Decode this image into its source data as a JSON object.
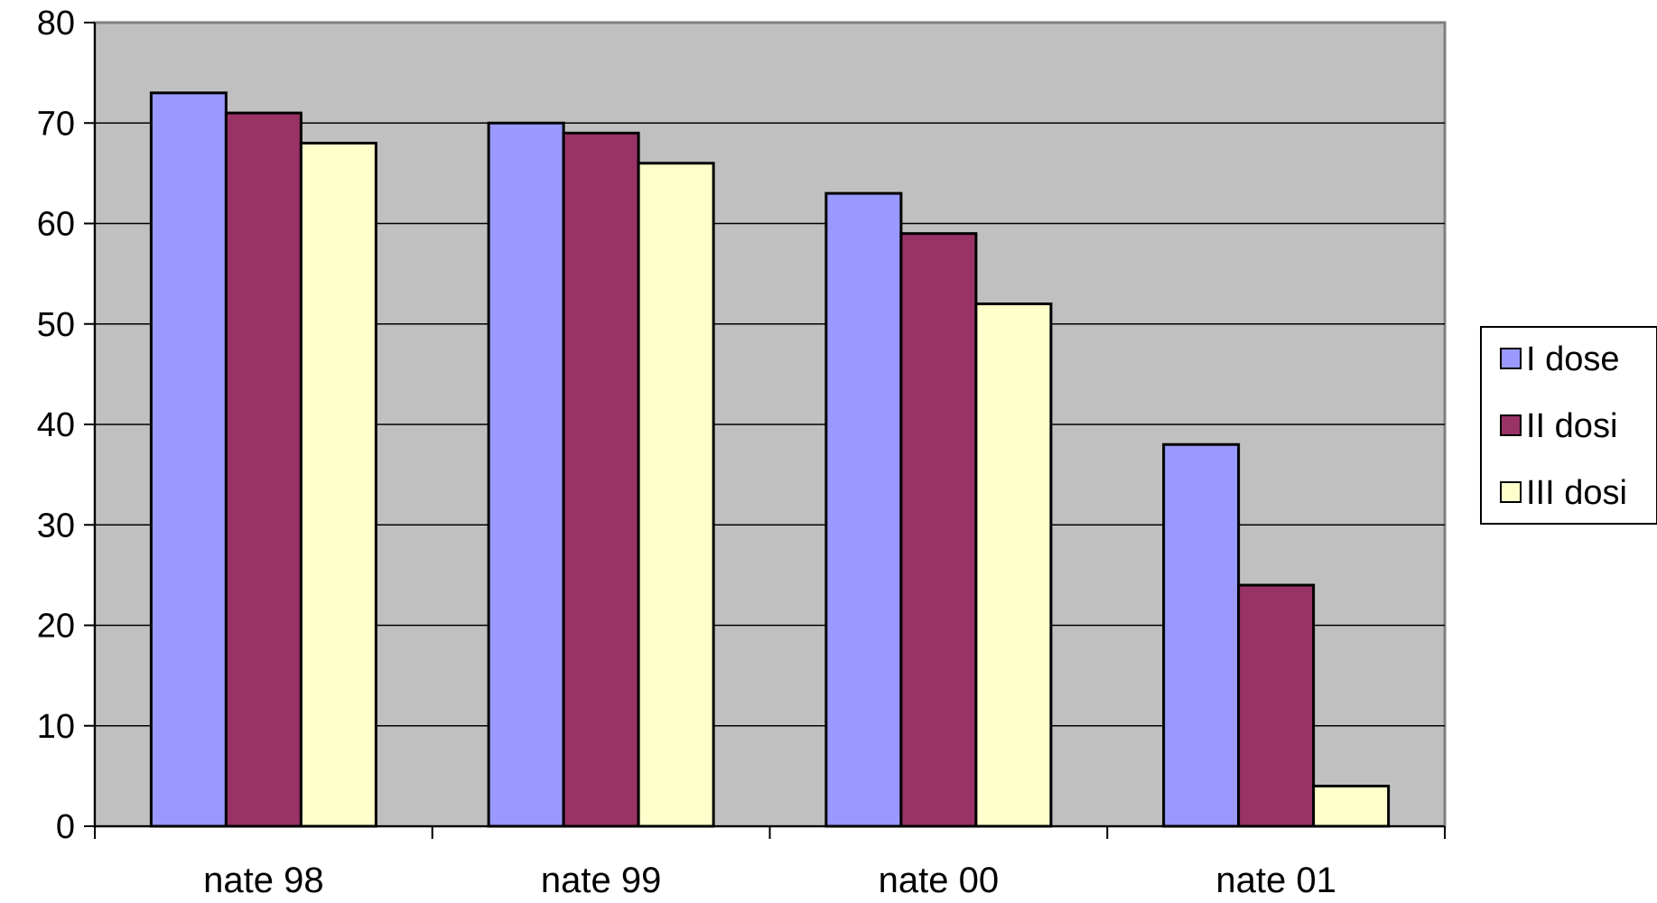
{
  "chart_data": {
    "type": "bar",
    "title": "",
    "xlabel": "",
    "ylabel": "",
    "categories": [
      "nate 98",
      "nate 99",
      "nate 00",
      "nate 01"
    ],
    "series": [
      {
        "name": "I dose",
        "values": [
          73,
          70,
          63,
          38
        ],
        "color": "#9999ff"
      },
      {
        "name": "II dosi",
        "values": [
          71,
          69,
          59,
          24
        ],
        "color": "#993366"
      },
      {
        "name": "III dosi",
        "values": [
          68,
          66,
          52,
          4
        ],
        "color": "#ffffcc"
      }
    ],
    "ylim": [
      0,
      80
    ],
    "yticks": [
      "0",
      "10",
      "20",
      "30",
      "40",
      "50",
      "60",
      "70",
      "80"
    ],
    "grid": true,
    "legend_position": "right",
    "plot_background": "#c0c0c0"
  }
}
